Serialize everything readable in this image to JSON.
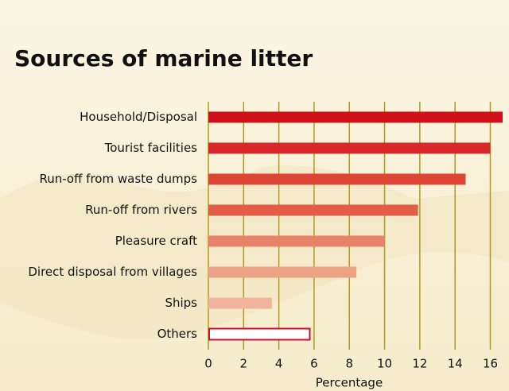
{
  "chart_data": {
    "type": "barh",
    "title": "Sources of marine litter",
    "categories": [
      "Household/Disposal",
      "Tourist facilities",
      "Run-off from waste dumps",
      "Run-off from rivers",
      "Pleasure craft",
      "Direct disposal from villages",
      "Ships",
      "Others"
    ],
    "values": [
      16.7,
      16.0,
      14.6,
      11.9,
      10.0,
      8.4,
      3.6,
      5.8
    ],
    "colors": [
      "#d0101a",
      "#d9282a",
      "#df4535",
      "#e25d45",
      "#e8836a",
      "#eca285",
      "#f0b49c",
      "#ffffff"
    ],
    "edgecolors": [
      null,
      null,
      null,
      null,
      null,
      null,
      null,
      "#c8102e"
    ],
    "xlabel": "Percentage",
    "xlim": [
      0,
      16.7
    ],
    "xticks": [
      0,
      2,
      4,
      6,
      8,
      10,
      12,
      14,
      16
    ],
    "grid": true,
    "grid_color": "#b09a1e"
  }
}
